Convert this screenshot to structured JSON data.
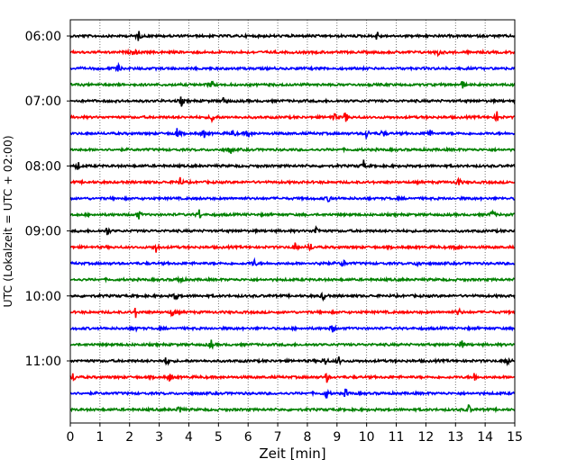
{
  "chart_data": {
    "type": "line",
    "title": "",
    "xlabel": "Zeit  [min]",
    "ylabel": "UTC (Lokalzeit = UTC + 02:00)",
    "xlim": [
      0,
      15
    ],
    "x_ticks": [
      "0",
      "1",
      "2",
      "3",
      "4",
      "5",
      "6",
      "7",
      "8",
      "9",
      "10",
      "11",
      "12",
      "13",
      "14",
      "15"
    ],
    "y_tick_labels": [
      "06:00",
      "07:00",
      "08:00",
      "09:00",
      "10:00",
      "11:00"
    ],
    "grid": "vertical dotted lines at each minute",
    "trace_interval_min": 15,
    "trace_color_cycle": [
      "#000000",
      "#ff0000",
      "#0000ff",
      "#008000"
    ],
    "traces": [
      {
        "start": "06:00",
        "color": "#000000",
        "events": [
          2.3,
          10.35
        ]
      },
      {
        "start": "06:15",
        "color": "#ff0000",
        "events": [
          2.15,
          12.4
        ]
      },
      {
        "start": "06:30",
        "color": "#0000ff",
        "events": [
          1.6
        ]
      },
      {
        "start": "06:45",
        "color": "#008000",
        "events": [
          4.75,
          13.25
        ]
      },
      {
        "start": "07:00",
        "color": "#000000",
        "events": [
          3.75,
          5.2
        ]
      },
      {
        "start": "07:15",
        "color": "#ff0000",
        "events": [
          4.8,
          8.9,
          9.3,
          14.4
        ]
      },
      {
        "start": "07:30",
        "color": "#0000ff",
        "events": [
          3.6,
          4.5,
          5.5,
          6.0,
          10.0,
          10.55,
          12.1
        ]
      },
      {
        "start": "07:45",
        "color": "#008000",
        "events": [
          5.4
        ]
      },
      {
        "start": "08:00",
        "color": "#000000",
        "events": [
          0.25,
          9.9
        ]
      },
      {
        "start": "08:15",
        "color": "#ff0000",
        "events": [
          3.7,
          13.1
        ]
      },
      {
        "start": "08:30",
        "color": "#0000ff",
        "events": [
          8.75
        ]
      },
      {
        "start": "08:45",
        "color": "#008000",
        "events": [
          2.3,
          4.35,
          14.25
        ]
      },
      {
        "start": "09:00",
        "color": "#000000",
        "events": [
          1.25,
          8.3
        ]
      },
      {
        "start": "09:15",
        "color": "#ff0000",
        "events": [
          2.9,
          7.6,
          8.1,
          13.05
        ]
      },
      {
        "start": "09:30",
        "color": "#0000ff",
        "events": [
          6.2,
          8.5,
          9.2,
          11.75
        ]
      },
      {
        "start": "09:45",
        "color": "#008000",
        "events": [
          3.7
        ]
      },
      {
        "start": "10:00",
        "color": "#000000",
        "events": [
          3.55,
          8.55
        ]
      },
      {
        "start": "10:15",
        "color": "#ff0000",
        "events": [
          2.2,
          3.45,
          13.1
        ]
      },
      {
        "start": "10:30",
        "color": "#0000ff",
        "events": [
          2.15,
          8.85
        ]
      },
      {
        "start": "10:45",
        "color": "#008000",
        "events": [
          4.75,
          13.2
        ]
      },
      {
        "start": "11:00",
        "color": "#000000",
        "events": [
          3.25,
          8.6,
          9.05,
          14.75
        ]
      },
      {
        "start": "11:15",
        "color": "#ff0000",
        "events": [
          0.1,
          3.35,
          8.65,
          13.65
        ]
      },
      {
        "start": "11:30",
        "color": "#0000ff",
        "events": [
          8.65,
          9.3
        ]
      },
      {
        "start": "11:45",
        "color": "#008000",
        "events": [
          3.7,
          13.45
        ]
      }
    ]
  }
}
